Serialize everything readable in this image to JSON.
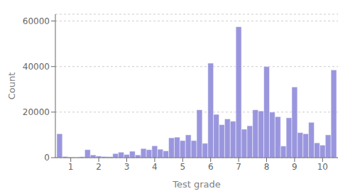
{
  "chart_data": {
    "type": "histogram",
    "xlabel": "Test grade",
    "ylabel": "Count",
    "bins": [
      0.5,
      0.7,
      0.9,
      1.1,
      1.3,
      1.5,
      1.7,
      1.9,
      2.1,
      2.3,
      2.5,
      2.7,
      2.9,
      3.1,
      3.3,
      3.5,
      3.7,
      3.9,
      4.1,
      4.3,
      4.5,
      4.7,
      4.9,
      5.1,
      5.3,
      5.5,
      5.7,
      5.9,
      6.1,
      6.3,
      6.5,
      6.7,
      6.9,
      7.1,
      7.3,
      7.5,
      7.7,
      7.9,
      8.1,
      8.3,
      8.5,
      8.7,
      8.9,
      9.1,
      9.3,
      9.5,
      9.7,
      9.9,
      10.1,
      10.3,
      10.5
    ],
    "values": [
      10500,
      500,
      200,
      100,
      400,
      3500,
      1200,
      700,
      500,
      400,
      1800,
      2400,
      1400,
      2800,
      1200,
      4000,
      3500,
      5200,
      3700,
      3000,
      8700,
      9000,
      7500,
      10000,
      7500,
      21000,
      6300,
      41500,
      19000,
      14500,
      17000,
      16000,
      57500,
      12500,
      14000,
      21000,
      20500,
      40000,
      20000,
      18000,
      5100,
      17500,
      31000,
      11000,
      10500,
      15500,
      6500,
      5500,
      10000,
      38500
    ],
    "xlim": [
      0.45,
      10.55
    ],
    "xticks": [
      1,
      2,
      3,
      4,
      5,
      6,
      7,
      8,
      9,
      10
    ],
    "ylim": [
      0,
      63000
    ],
    "yticks": [
      0,
      20000,
      40000,
      60000
    ],
    "grid": true
  }
}
